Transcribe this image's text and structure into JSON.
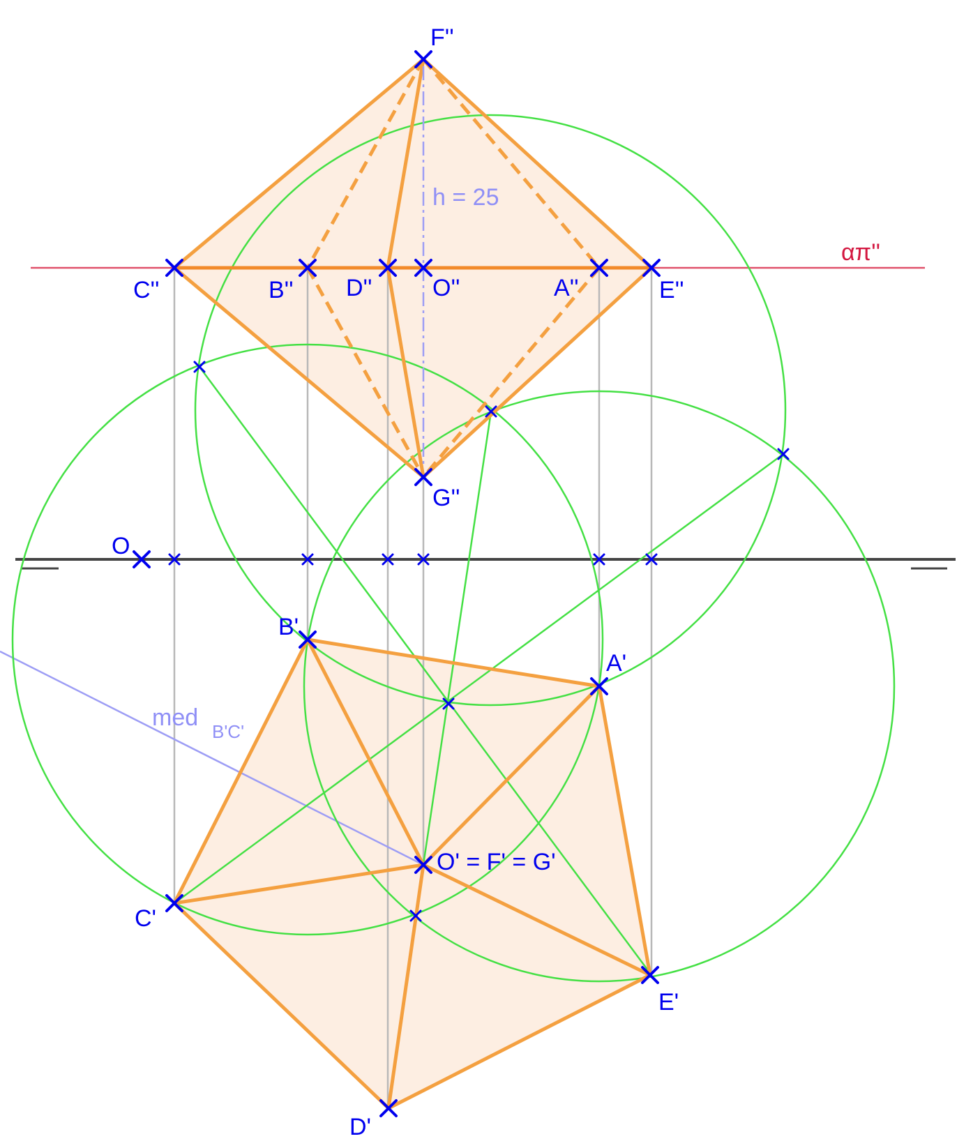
{
  "colors": {
    "background": "#ffffff",
    "face_fill": "#fdeee2",
    "edge_orange": "#f4a040",
    "construction_green": "#44e044",
    "point_blue": "#0000ee",
    "projection_gray": "#b8b8b8",
    "ground_line": "#444444",
    "plane_trace_red": "#e0506a",
    "label_red": "#d3163f",
    "label_light_blue": "#8f8ff6",
    "mediatrix_blue": "#9d9df5"
  },
  "labels": {
    "F2": "F''",
    "C2": "C''",
    "B2": "B''",
    "D2": "D''",
    "O2": "O''",
    "A2": "A''",
    "E2": "E''",
    "G2": "G''",
    "O": "O",
    "B1": "B'",
    "A1": "A'",
    "C1": "C'",
    "O1": "O' = F' = G'",
    "E1": "E'",
    "D1": "D'",
    "height": "h = 25",
    "plane_trace": "απ''",
    "mediatrix": "med",
    "mediatrix_sub": "B'C'"
  }
}
